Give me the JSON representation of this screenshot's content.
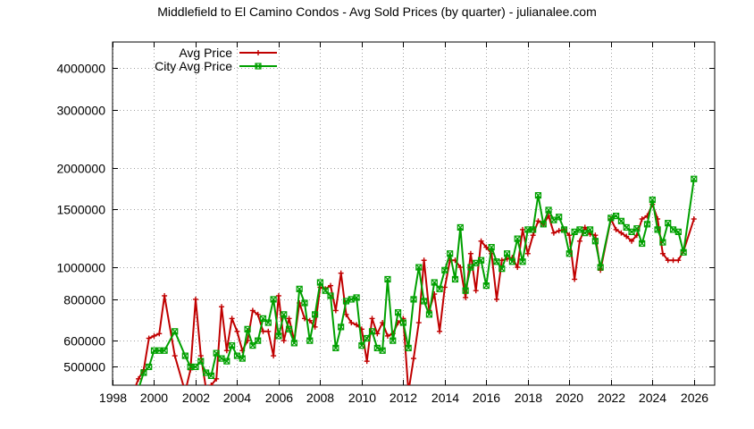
{
  "chart_data": {
    "type": "line",
    "title": "Middlefield to El Camino Condos - Avg Sold Prices (by quarter) - julianalee.com",
    "xlabel": "",
    "ylabel": "",
    "xlim": [
      1998,
      2027
    ],
    "ylim": [
      440000,
      4800000
    ],
    "y_scale": "log",
    "grid": true,
    "legend_position": "top-left",
    "x_ticks": [
      1998,
      2000,
      2002,
      2004,
      2006,
      2008,
      2010,
      2012,
      2014,
      2016,
      2018,
      2020,
      2022,
      2024,
      2026
    ],
    "x_tick_labels": [
      "1998",
      "2000",
      "2002",
      "2004",
      "2006",
      "2008",
      "2010",
      "2012",
      "2014",
      "2016",
      "2018",
      "2020",
      "2022",
      "2024",
      "2026"
    ],
    "y_ticks": [
      500000,
      600000,
      800000,
      1000000,
      1500000,
      2000000,
      3000000,
      4000000
    ],
    "y_tick_labels": [
      "500000",
      "600000",
      "800000",
      "1000000",
      "1500000",
      "2000000",
      "3000000",
      "4000000"
    ],
    "series": [
      {
        "name": "Avg Price",
        "color": "#c00000",
        "marker": "plus",
        "x": [
          1999.0,
          1999.25,
          1999.5,
          1999.75,
          2000.0,
          2000.25,
          2000.5,
          2001.0,
          2001.5,
          2001.75,
          2002.0,
          2002.25,
          2002.5,
          2002.75,
          2003.0,
          2003.25,
          2003.5,
          2003.75,
          2004.0,
          2004.25,
          2004.5,
          2004.75,
          2005.0,
          2005.25,
          2005.5,
          2005.75,
          2006.0,
          2006.25,
          2006.5,
          2006.75,
          2007.0,
          2007.25,
          2007.5,
          2007.75,
          2008.0,
          2008.25,
          2008.5,
          2008.75,
          2009.0,
          2009.25,
          2009.5,
          2009.75,
          2010.0,
          2010.25,
          2010.5,
          2010.75,
          2011.0,
          2011.25,
          2011.5,
          2011.75,
          2012.0,
          2012.25,
          2012.5,
          2012.75,
          2013.0,
          2013.25,
          2013.5,
          2013.75,
          2014.0,
          2014.25,
          2014.5,
          2014.75,
          2015.0,
          2015.25,
          2015.5,
          2015.75,
          2016.0,
          2016.25,
          2016.5,
          2016.75,
          2017.0,
          2017.25,
          2017.5,
          2017.75,
          2018.0,
          2018.25,
          2018.5,
          2018.75,
          2019.0,
          2019.25,
          2019.5,
          2019.75,
          2020.0,
          2020.25,
          2020.5,
          2020.75,
          2021.0,
          2021.25,
          2021.5,
          2022.0,
          2022.25,
          2022.5,
          2022.75,
          2023.0,
          2023.25,
          2023.5,
          2023.75,
          2024.0,
          2024.25,
          2024.5,
          2024.75,
          2025.0,
          2025.25,
          2025.5,
          2026.0
        ],
        "values": [
          420000,
          460000,
          490000,
          610000,
          620000,
          630000,
          820000,
          540000,
          420000,
          490000,
          800000,
          540000,
          430000,
          440000,
          460000,
          760000,
          560000,
          700000,
          640000,
          560000,
          600000,
          740000,
          720000,
          640000,
          640000,
          540000,
          820000,
          600000,
          700000,
          600000,
          780000,
          700000,
          690000,
          660000,
          870000,
          860000,
          880000,
          740000,
          960000,
          720000,
          680000,
          670000,
          650000,
          520000,
          700000,
          630000,
          680000,
          620000,
          630000,
          680000,
          700000,
          420000,
          530000,
          680000,
          1050000,
          740000,
          830000,
          640000,
          870000,
          1050000,
          1050000,
          1000000,
          810000,
          1100000,
          850000,
          1200000,
          1150000,
          1100000,
          800000,
          1050000,
          1060000,
          1070000,
          1000000,
          1300000,
          1100000,
          1250000,
          1380000,
          1350000,
          1430000,
          1270000,
          1290000,
          1300000,
          1250000,
          920000,
          1200000,
          1320000,
          1260000,
          1250000,
          980000,
          1400000,
          1300000,
          1270000,
          1240000,
          1200000,
          1250000,
          1400000,
          1430000,
          1550000,
          1400000,
          1100000,
          1050000,
          1050000,
          1050000,
          1120000,
          1400000
        ]
      },
      {
        "name": "City Avg Price",
        "color": "#00a000",
        "marker": "cross-box",
        "x": [
          1999.0,
          1999.25,
          1999.5,
          1999.75,
          2000.0,
          2000.25,
          2000.5,
          2001.0,
          2001.5,
          2001.75,
          2002.0,
          2002.25,
          2002.5,
          2002.75,
          2003.0,
          2003.25,
          2003.5,
          2003.75,
          2004.0,
          2004.25,
          2004.5,
          2004.75,
          2005.0,
          2005.25,
          2005.5,
          2005.75,
          2006.0,
          2006.25,
          2006.5,
          2006.75,
          2007.0,
          2007.25,
          2007.5,
          2007.75,
          2008.0,
          2008.25,
          2008.5,
          2008.75,
          2009.0,
          2009.25,
          2009.5,
          2009.75,
          2010.0,
          2010.25,
          2010.5,
          2010.75,
          2011.0,
          2011.25,
          2011.5,
          2011.75,
          2012.0,
          2012.25,
          2012.5,
          2012.75,
          2013.0,
          2013.25,
          2013.5,
          2013.75,
          2014.0,
          2014.25,
          2014.5,
          2014.75,
          2015.0,
          2015.25,
          2015.5,
          2015.75,
          2016.0,
          2016.25,
          2016.5,
          2016.75,
          2017.0,
          2017.25,
          2017.5,
          2017.75,
          2018.0,
          2018.25,
          2018.5,
          2018.75,
          2019.0,
          2019.25,
          2019.5,
          2019.75,
          2020.0,
          2020.25,
          2020.5,
          2020.75,
          2021.0,
          2021.25,
          2021.5,
          2022.0,
          2022.25,
          2022.5,
          2022.75,
          2023.0,
          2023.25,
          2023.5,
          2023.75,
          2024.0,
          2024.25,
          2024.5,
          2024.75,
          2025.0,
          2025.25,
          2025.5,
          2026.0
        ],
        "values": [
          420000,
          430000,
          480000,
          500000,
          560000,
          560000,
          560000,
          640000,
          540000,
          500000,
          500000,
          520000,
          480000,
          470000,
          550000,
          530000,
          520000,
          580000,
          540000,
          530000,
          650000,
          580000,
          600000,
          700000,
          680000,
          800000,
          620000,
          720000,
          650000,
          590000,
          860000,
          780000,
          600000,
          720000,
          900000,
          850000,
          820000,
          570000,
          660000,
          790000,
          800000,
          810000,
          580000,
          610000,
          640000,
          570000,
          560000,
          920000,
          600000,
          730000,
          680000,
          570000,
          800000,
          1000000,
          790000,
          720000,
          900000,
          860000,
          980000,
          1100000,
          920000,
          1320000,
          850000,
          1000000,
          1030000,
          1050000,
          880000,
          1150000,
          1040000,
          990000,
          1100000,
          1040000,
          1220000,
          1040000,
          1300000,
          1300000,
          1650000,
          1350000,
          1490000,
          1390000,
          1420000,
          1300000,
          1100000,
          1280000,
          1300000,
          1270000,
          1300000,
          1200000,
          1000000,
          1410000,
          1430000,
          1380000,
          1320000,
          1280000,
          1310000,
          1180000,
          1350000,
          1600000,
          1300000,
          1190000,
          1360000,
          1300000,
          1280000,
          1110000,
          1850000
        ]
      }
    ]
  }
}
